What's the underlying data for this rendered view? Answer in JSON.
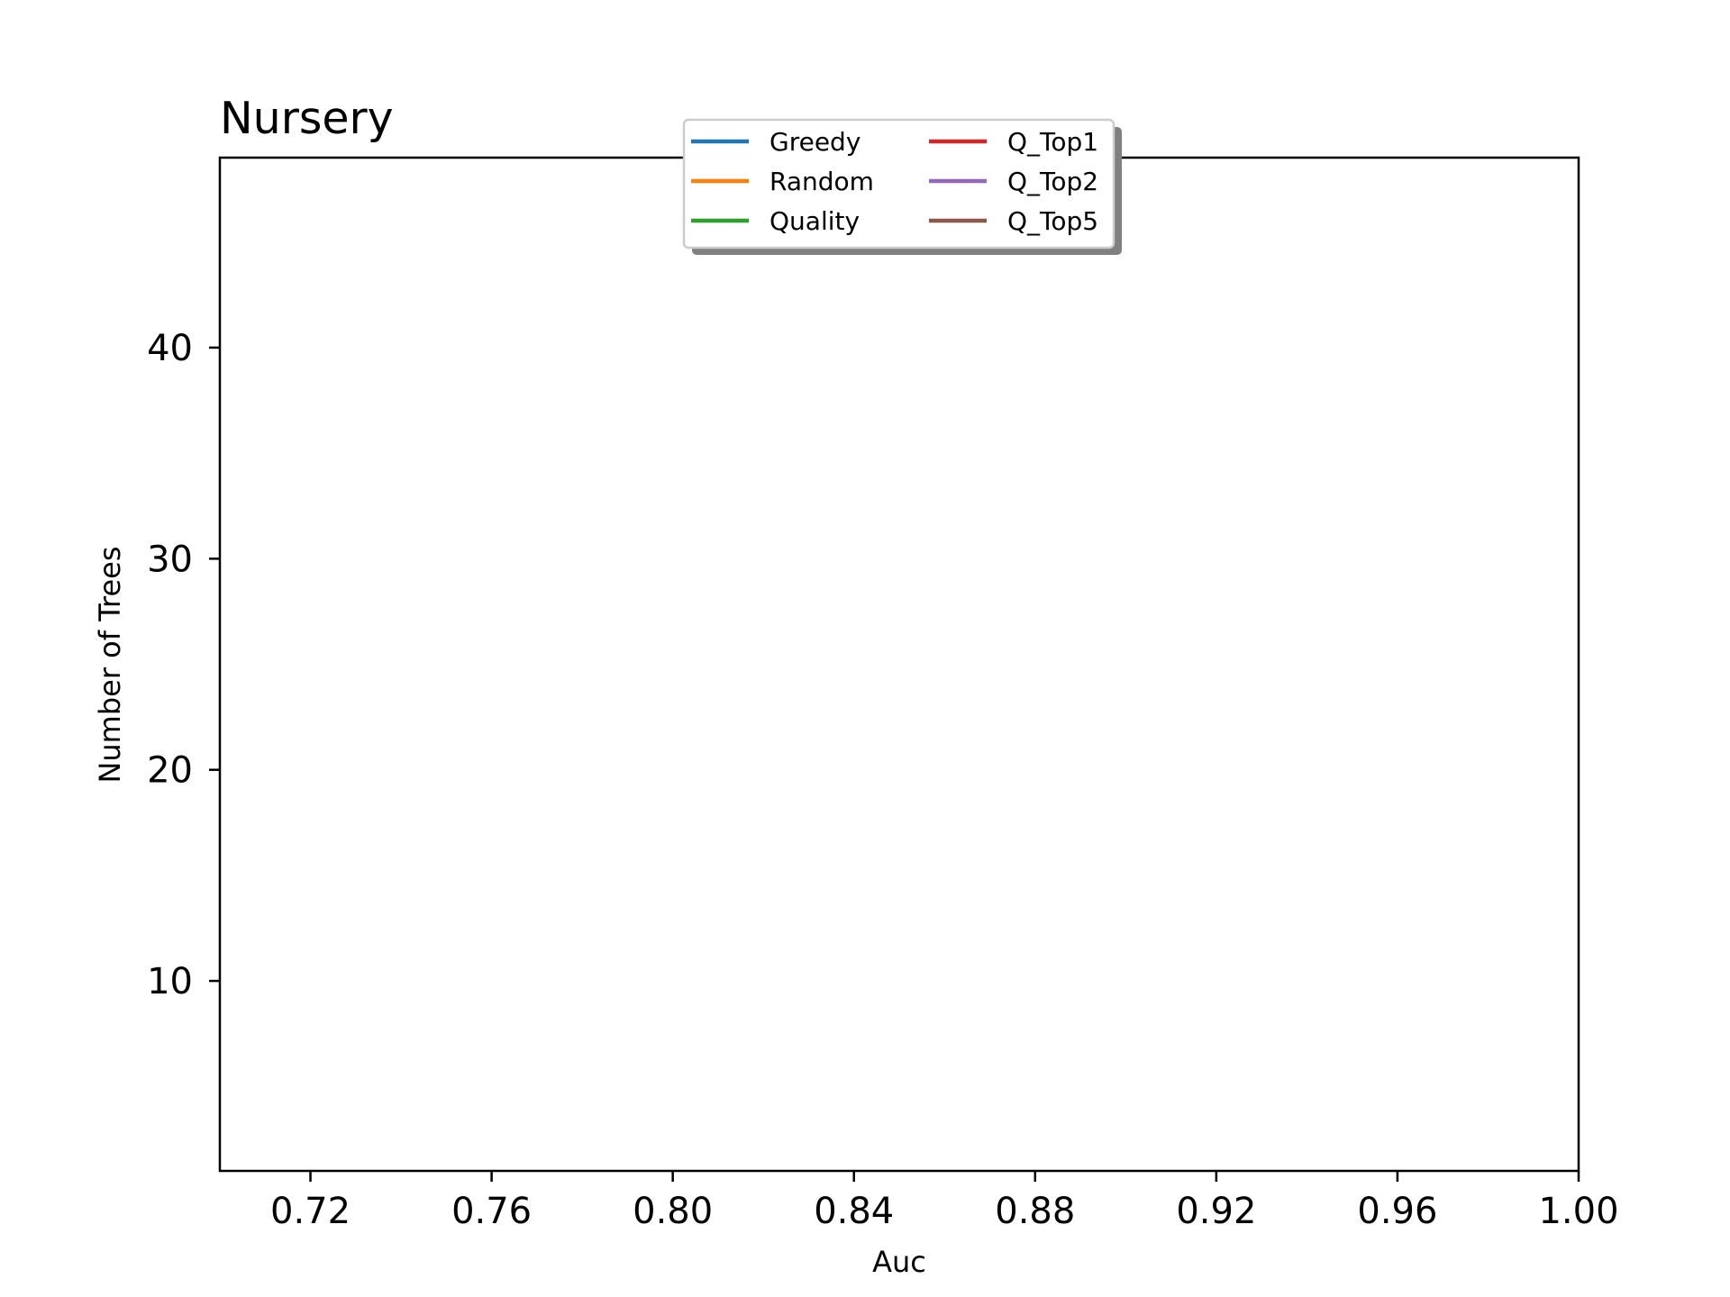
{
  "chart_data": {
    "type": "line",
    "title": "Nursery",
    "xlabel": "Auc",
    "ylabel": "Number of Trees",
    "xlim": [
      0.7,
      1.0
    ],
    "ylim": [
      1,
      49
    ],
    "xticks": [
      0.72,
      0.76,
      0.8,
      0.84,
      0.88,
      0.92,
      0.96,
      1.0
    ],
    "xtick_labels": [
      "0.72",
      "0.76",
      "0.80",
      "0.84",
      "0.88",
      "0.92",
      "0.96",
      "1.00"
    ],
    "yticks": [
      10,
      20,
      30,
      40
    ],
    "ytick_labels": [
      "10",
      "20",
      "30",
      "40"
    ],
    "grid": false,
    "legend": {
      "placement": "top-center",
      "columns": 2,
      "shadow": true
    },
    "series": [
      {
        "name": "Greedy",
        "color": "#1f77b4",
        "x": [],
        "y": []
      },
      {
        "name": "Random",
        "color": "#ff7f0e",
        "x": [],
        "y": []
      },
      {
        "name": "Quality",
        "color": "#2ca02c",
        "x": [],
        "y": []
      },
      {
        "name": "Q_Top1",
        "color": "#d62728",
        "x": [],
        "y": []
      },
      {
        "name": "Q_Top2",
        "color": "#9467bd",
        "x": [],
        "y": []
      },
      {
        "name": "Q_Top5",
        "color": "#8c564b",
        "x": [],
        "y": []
      }
    ]
  }
}
